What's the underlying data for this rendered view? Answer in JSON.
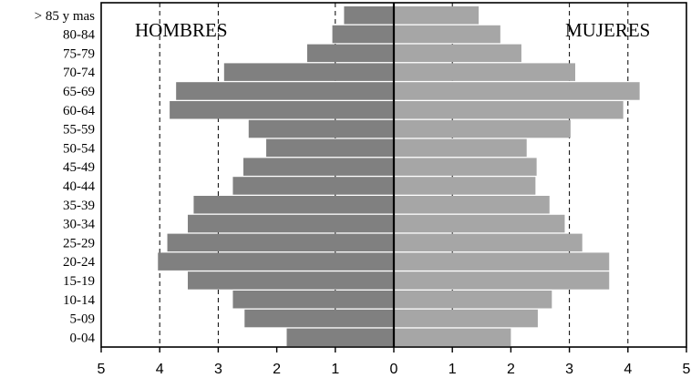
{
  "chart_data": {
    "type": "bar",
    "orientation": "horizontal-diverging",
    "categories": [
      "> 85 y mas",
      "80-84",
      "75-79",
      "70-74",
      "65-69",
      "60-64",
      "55-59",
      "50-54",
      "45-49",
      "40-44",
      "35-39",
      "30-34",
      "25-29",
      "20-24",
      "15-19",
      "10-14",
      "5-09",
      "0-04"
    ],
    "series": [
      {
        "name": "HOMBRES",
        "color": "#808080",
        "values": [
          0.85,
          1.05,
          1.48,
          2.9,
          3.72,
          3.83,
          2.48,
          2.18,
          2.57,
          2.75,
          3.42,
          3.52,
          3.87,
          4.03,
          3.52,
          2.75,
          2.55,
          1.83
        ]
      },
      {
        "name": "MUJERES",
        "color": "#a6a6a6",
        "values": [
          1.45,
          1.82,
          2.18,
          3.1,
          4.2,
          3.92,
          3.02,
          2.27,
          2.44,
          2.42,
          2.66,
          2.92,
          3.22,
          3.68,
          3.68,
          2.7,
          2.46,
          2.0
        ]
      }
    ],
    "xticks": [
      "5",
      "4",
      "3",
      "2",
      "1",
      "0",
      "1",
      "2",
      "3",
      "4",
      "5"
    ],
    "xlim": [
      -5,
      5
    ],
    "grid": "vertical dashed at 1, 3, 4 on each side",
    "legend": "none"
  }
}
